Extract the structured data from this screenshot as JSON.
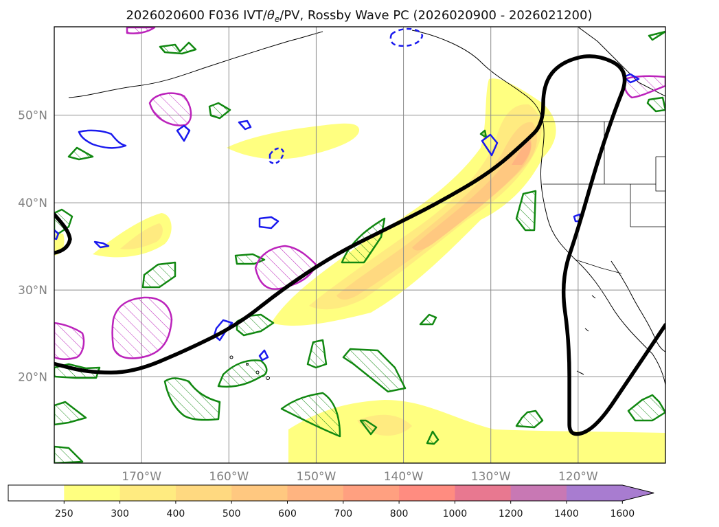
{
  "chart_data": {
    "type": "heatmap",
    "title": "2026020600 F036 IVT/θe/PV, Rossby Wave PC (2026020900 - 2026021200)",
    "title_parts": {
      "prefix": "2026020600 F036 IVT/",
      "theta": "θ",
      "theta_sub": "e",
      "suffix": "/PV, Rossby Wave PC (2026020900 - 2026021200)"
    },
    "map_extent": {
      "lon": [
        -180,
        -110
      ],
      "lat": [
        10,
        60
      ]
    },
    "lon_ticks": [
      {
        "value": -170,
        "label": "170°W"
      },
      {
        "value": -160,
        "label": "160°W"
      },
      {
        "value": -150,
        "label": "150°W"
      },
      {
        "value": -140,
        "label": "140°W"
      },
      {
        "value": -130,
        "label": "130°W"
      },
      {
        "value": -120,
        "label": "120°W"
      }
    ],
    "lat_ticks": [
      {
        "value": 20,
        "label": "20°N"
      },
      {
        "value": 30,
        "label": "30°N"
      },
      {
        "value": 40,
        "label": "40°N"
      },
      {
        "value": 50,
        "label": "50°N"
      }
    ],
    "grid": true,
    "colorbar": {
      "levels": [
        "250",
        "300",
        "400",
        "500",
        "600",
        "700",
        "800",
        "1000",
        "1200",
        "1400",
        "1600"
      ],
      "colors": [
        "#ffffff",
        "#ffff80",
        "#ffeb80",
        "#ffd980",
        "#ffc880",
        "#ffb480",
        "#ffa080",
        "#ff8c80",
        "#e87890",
        "#c878b4",
        "#a87cd0"
      ],
      "extend": "max"
    },
    "ivt_plume": {
      "axis_points": [
        [
          -147,
          29
        ],
        [
          -140,
          35
        ],
        [
          -133,
          39
        ],
        [
          -128,
          44
        ],
        [
          -125,
          48
        ]
      ],
      "peak_ivt": 700
    },
    "rossby_wave_contour": {
      "points": [
        [
          -180,
          21.5
        ],
        [
          -176,
          20.5
        ],
        [
          -171,
          20.5
        ],
        [
          -165,
          23
        ],
        [
          -159,
          26
        ],
        [
          -154,
          30
        ],
        [
          -148,
          34
        ],
        [
          -142,
          37
        ],
        [
          -136,
          40
        ],
        [
          -130,
          43.5
        ],
        [
          -126,
          47
        ],
        [
          -124,
          49
        ],
        [
          -124,
          53.5
        ],
        [
          -122,
          56
        ],
        [
          -118,
          57
        ],
        [
          -114,
          55
        ],
        [
          -116,
          50
        ],
        [
          -118,
          44
        ],
        [
          -120,
          37
        ],
        [
          -122,
          31
        ],
        [
          -121,
          24
        ],
        [
          -121,
          16
        ],
        [
          -121,
          13
        ],
        [
          -118,
          14
        ],
        [
          -114,
          20
        ],
        [
          -110,
          26
        ]
      ]
    },
    "annotations": []
  }
}
